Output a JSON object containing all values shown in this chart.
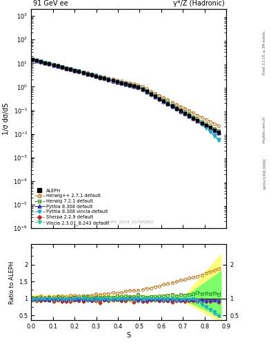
{
  "title_left": "91 GeV ee",
  "title_right": "γ*/Z (Hadronic)",
  "ylabel_main": "1/σ dσ/dS",
  "ylabel_ratio": "Ratio to ALEPH",
  "xlabel": "S",
  "watermark": "ALEPH_2004_S5765862",
  "right_label1": "Rivet 3.1.10, ≥ 3M events",
  "right_label2": "mcplots.cern.ch [arXiv:1306.3436]",
  "ylim_main_log": [
    -6,
    3.5
  ],
  "ylim_ratio": [
    0.35,
    2.6
  ],
  "xlim": [
    0.0,
    0.9
  ],
  "col_aleph": "#000000",
  "col_hwpp": "#cc7722",
  "col_hw72": "#339933",
  "col_pydef": "#3333cc",
  "col_pyvin": "#22aacc",
  "col_sherpa": "#cc2222",
  "col_vincia": "#22ccaa",
  "band_yellow": "#ffff66",
  "band_green": "#66ff66"
}
